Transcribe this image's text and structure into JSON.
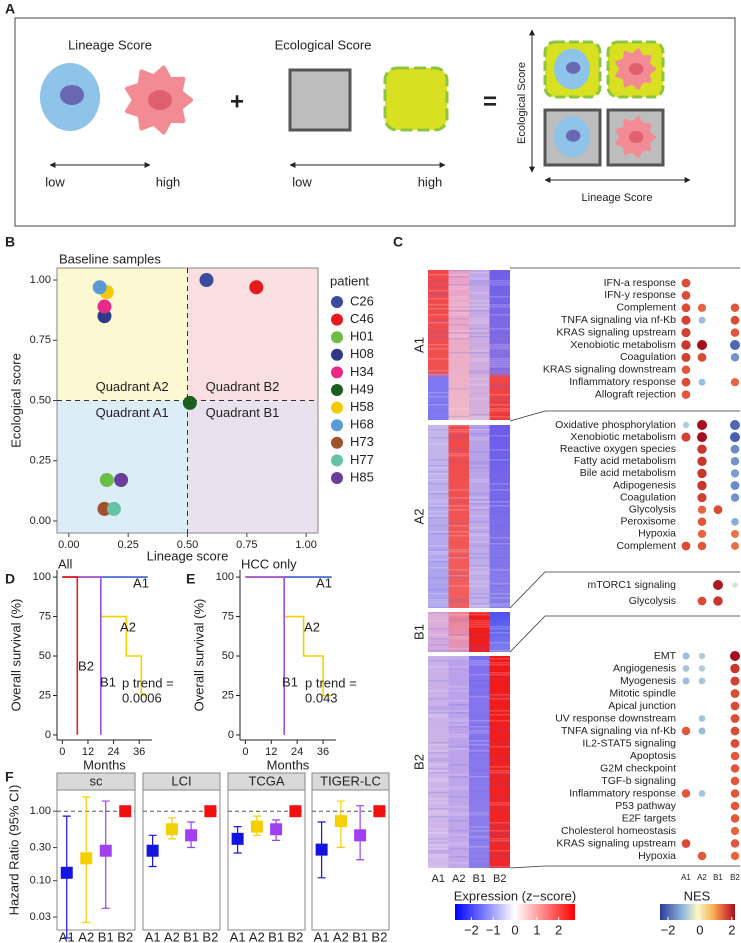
{
  "panel_labels": [
    "A",
    "B",
    "C",
    "D",
    "E",
    "F"
  ],
  "panel_a": {
    "lineage": {
      "title": "Lineage Score",
      "low": "low",
      "high": "high"
    },
    "ecological": {
      "title": "Ecological Score",
      "low": "low",
      "high": "high"
    },
    "operators": [
      "+",
      "="
    ],
    "combined": {
      "y_label": "Ecological Score",
      "x_label": "Lineage Score"
    }
  },
  "chart_data": [
    {
      "type": "scatter",
      "title": "Baseline samples",
      "xlabel": "Lineage score",
      "ylabel": "Ecological score",
      "xlim": [
        -0.05,
        1.05
      ],
      "ylim": [
        -0.05,
        1.05
      ],
      "xticks": [
        {
          "value": 0,
          "label": "0.00"
        },
        0.25,
        {
          "value": 0.5,
          "label": "0.50"
        },
        0.75,
        {
          "value": 1,
          "label": "1.00"
        }
      ],
      "yticks": [
        {
          "value": 0,
          "label": "0.00"
        },
        0.25,
        {
          "value": 0.5,
          "label": "0.50"
        },
        0.75,
        {
          "value": 1,
          "label": "1.00"
        }
      ],
      "threshold": 0.5,
      "quadrant_labels": [
        "Quadrant A2",
        "Quadrant B2",
        "Quadrant A1",
        "Quadrant B1"
      ],
      "quadrant_colors": [
        "#fbf8d2",
        "#f9dfe0",
        "#dcedf7",
        "#e9e1ee"
      ],
      "legend_title": "patient",
      "series": [
        {
          "name": "C26",
          "color": "#3b4b9b",
          "x": [
            0.58
          ],
          "values": [
            1.0
          ]
        },
        {
          "name": "C46",
          "color": "#e41a1c",
          "x": [
            0.79
          ],
          "values": [
            0.97
          ]
        },
        {
          "name": "H01",
          "color": "#6cbd45",
          "x": [
            0.16
          ],
          "values": [
            0.17
          ]
        },
        {
          "name": "H08",
          "color": "#2e3a87",
          "x": [
            0.15
          ],
          "values": [
            0.85
          ]
        },
        {
          "name": "H34",
          "color": "#e7298a",
          "x": [
            0.15
          ],
          "values": [
            0.89
          ]
        },
        {
          "name": "H49",
          "color": "#1b5e20",
          "x": [
            0.51
          ],
          "values": [
            0.49
          ]
        },
        {
          "name": "H58",
          "color": "#f5c800",
          "x": [
            0.16
          ],
          "values": [
            0.95
          ]
        },
        {
          "name": "H68",
          "color": "#5b9bd5",
          "x": [
            0.13
          ],
          "values": [
            0.97
          ]
        },
        {
          "name": "H73",
          "color": "#a0522d",
          "x": [
            0.15
          ],
          "values": [
            0.05
          ]
        },
        {
          "name": "H77",
          "color": "#66c2a5",
          "x": [
            0.19
          ],
          "values": [
            0.05
          ]
        },
        {
          "name": "H85",
          "color": "#6a3d9a",
          "x": [
            0.22
          ],
          "values": [
            0.17
          ]
        }
      ]
    },
    {
      "type": "line",
      "title": "All",
      "xlabel": "Months",
      "ylabel": "Overall survival (%)",
      "xlim": [
        -2.5,
        42
      ],
      "ylim": [
        -3.2,
        104.5
      ],
      "xticks": [
        0,
        12,
        24,
        36
      ],
      "yticks": [
        0,
        25,
        50,
        75,
        100
      ],
      "p_label": "p trend =",
      "p_value": 0.0006,
      "series": [
        {
          "name": "A1",
          "color": "#3a5fcd",
          "x": [
            0,
            40
          ],
          "values": [
            100,
            100
          ]
        },
        {
          "name": "A2",
          "color": "#f5d000",
          "x": [
            0,
            18,
            18,
            30,
            30,
            37,
            37,
            40
          ],
          "values": [
            100,
            100,
            75,
            75,
            50,
            50,
            25,
            25
          ]
        },
        {
          "name": "B1",
          "color": "#a050e0",
          "x": [
            0,
            18,
            18
          ],
          "values": [
            100,
            100,
            0
          ]
        },
        {
          "name": "B2",
          "color": "#e02020",
          "x": [
            0,
            7,
            7,
            7
          ],
          "values": [
            100,
            100,
            50,
            0
          ]
        }
      ]
    },
    {
      "type": "line",
      "title": "HCC only",
      "xlabel": "Months",
      "ylabel": "Overall survival (%)",
      "xlim": [
        -2.5,
        42
      ],
      "ylim": [
        -3.2,
        104.5
      ],
      "xticks": [
        0,
        12,
        24,
        36
      ],
      "yticks": [
        0,
        25,
        50,
        75,
        100
      ],
      "p_label": "p trend =",
      "p_value": 0.043,
      "series": [
        {
          "name": "A1",
          "color": "#3a5fcd",
          "x": [
            0,
            40
          ],
          "values": [
            100,
            100
          ]
        },
        {
          "name": "A2",
          "color": "#f5d000",
          "x": [
            0,
            18,
            18,
            27,
            27,
            36,
            36,
            40
          ],
          "values": [
            100,
            100,
            75,
            75,
            50,
            50,
            25,
            25
          ]
        },
        {
          "name": "B1",
          "color": "#a050e0",
          "x": [
            0,
            18,
            18
          ],
          "values": [
            100,
            100,
            0
          ]
        }
      ]
    },
    {
      "type": "errorbar",
      "title": "sc",
      "ylabel": "Hazard Ratio (95% CI)",
      "log_scale": true,
      "ylim": [
        0.0195,
        2.02
      ],
      "yticks": [
        0.03,
        {
          "value": 0.1,
          "label": "0.10"
        },
        {
          "value": 0.3,
          "label": "0.30"
        },
        {
          "value": 1,
          "label": "1.00"
        }
      ],
      "reference": 1,
      "categories": [
        "A1",
        "A2",
        "B1",
        "B2"
      ],
      "colors": [
        "#1414e0",
        "#f5d000",
        "#a040f0",
        "#f01010"
      ],
      "values": [
        0.13,
        0.21,
        0.27,
        1
      ],
      "lower": [
        0.015,
        0.025,
        0.04,
        null
      ],
      "upper": [
        0.85,
        1.6,
        1.4,
        null
      ]
    },
    {
      "type": "errorbar",
      "title": "LCI",
      "log_scale": true,
      "ylim": [
        0.0195,
        2.02
      ],
      "reference": 1,
      "categories": [
        "A1",
        "A2",
        "B1",
        "B2"
      ],
      "colors": [
        "#1414e0",
        "#f5d000",
        "#a040f0",
        "#f01010"
      ],
      "values": [
        0.27,
        0.55,
        0.45,
        1
      ],
      "lower": [
        0.16,
        0.4,
        0.3,
        null
      ],
      "upper": [
        0.45,
        0.8,
        0.7,
        null
      ]
    },
    {
      "type": "errorbar",
      "title": "TCGA",
      "log_scale": true,
      "ylim": [
        0.0195,
        2.02
      ],
      "reference": 1,
      "categories": [
        "A1",
        "A2",
        "B1",
        "B2"
      ],
      "colors": [
        "#1414e0",
        "#f5d000",
        "#a040f0",
        "#f01010"
      ],
      "values": [
        0.4,
        0.6,
        0.55,
        1
      ],
      "lower": [
        0.25,
        0.45,
        0.38,
        null
      ],
      "upper": [
        0.6,
        0.85,
        0.75,
        null
      ]
    },
    {
      "type": "errorbar",
      "title": "TIGER-LC",
      "log_scale": true,
      "ylim": [
        0.0195,
        2.02
      ],
      "reference": 1,
      "categories": [
        "A1",
        "A2",
        "B1",
        "B2"
      ],
      "colors": [
        "#1414e0",
        "#f5d000",
        "#a040f0",
        "#f01010"
      ],
      "values": [
        0.28,
        0.72,
        0.45,
        1
      ],
      "lower": [
        0.11,
        0.3,
        0.2,
        null
      ],
      "upper": [
        0.7,
        1.4,
        1.2,
        null
      ]
    }
  ],
  "panel_c": {
    "heatmap": {
      "columns": [
        "A1",
        "A2",
        "B1",
        "B2"
      ],
      "groups": [
        "A1",
        "A2",
        "B1",
        "B2"
      ],
      "colorbar_title": "Expression (z−score)",
      "clim": [
        -2.75,
        2.75
      ],
      "colorbar_ticks": [
        {
          "value": -2,
          "label": "−2"
        },
        {
          "value": -1,
          "label": "−1"
        },
        0,
        1,
        2
      ]
    },
    "dotplot": {
      "title": "NES",
      "columns": [
        "A1",
        "A2",
        "B1",
        "B2"
      ],
      "clim": [
        -2.5,
        2.2
      ],
      "colorbar_ticks": [
        {
          "value": -2,
          "label": "−2"
        },
        0,
        2
      ],
      "blocks": [
        {
          "rows": [
            {
              "name": "IFN-a response",
              "values": [
                1.6,
                null,
                null,
                null
              ]
            },
            {
              "name": "IFN-y response",
              "values": [
                1.6,
                null,
                null,
                null
              ]
            },
            {
              "name": "Complement",
              "values": [
                1.6,
                1.4,
                null,
                1.5
              ]
            },
            {
              "name": "TNFA signaling via nf-Kb",
              "values": [
                1.7,
                -1.0,
                null,
                1.6
              ]
            },
            {
              "name": "KRAS signaling upstream",
              "values": [
                1.7,
                null,
                null,
                1.5
              ]
            },
            {
              "name": "Xenobiotic metabolism",
              "values": [
                1.8,
                2.2,
                null,
                -2.0
              ]
            },
            {
              "name": "Coagulation",
              "values": [
                1.7,
                1.6,
                null,
                -1.5
              ]
            },
            {
              "name": "KRAS signaling downstream",
              "values": [
                1.5,
                null,
                null,
                null
              ]
            },
            {
              "name": "Inflammatory response",
              "values": [
                1.6,
                -1.0,
                null,
                1.4
              ]
            },
            {
              "name": "Allograft rejection",
              "values": [
                1.5,
                null,
                null,
                null
              ]
            }
          ]
        },
        {
          "rows": [
            {
              "name": "Oxidative phosphorylation",
              "values": [
                -0.8,
                2.3,
                null,
                -2.0
              ]
            },
            {
              "name": "Xenobiotic metabolism",
              "values": [
                1.7,
                2.2,
                null,
                -2.1
              ]
            },
            {
              "name": "Reactive oxygen species",
              "values": [
                null,
                1.8,
                null,
                -1.6
              ]
            },
            {
              "name": "Fatty acid metabolism",
              "values": [
                null,
                1.8,
                null,
                -1.5
              ]
            },
            {
              "name": "Bile acid metabolism",
              "values": [
                null,
                1.8,
                null,
                -1.4
              ]
            },
            {
              "name": "Adipogenesis",
              "values": [
                null,
                1.8,
                null,
                -1.6
              ]
            },
            {
              "name": "Coagulation",
              "values": [
                null,
                1.7,
                null,
                -1.5
              ]
            },
            {
              "name": "Glycolysis",
              "values": [
                null,
                1.4,
                1.6,
                null
              ]
            },
            {
              "name": "Peroxisome",
              "values": [
                null,
                1.5,
                null,
                -1.2
              ]
            },
            {
              "name": "Hypoxia",
              "values": [
                null,
                1.4,
                null,
                1.3
              ]
            },
            {
              "name": "Complement",
              "values": [
                1.6,
                1.5,
                null,
                1.3
              ]
            }
          ]
        },
        {
          "rows": [
            {
              "name": "mTORC1 signaling",
              "values": [
                null,
                null,
                2.1,
                -0.5
              ]
            },
            {
              "name": "Glycolysis",
              "values": [
                null,
                1.6,
                1.8,
                null
              ]
            }
          ]
        },
        {
          "rows": [
            {
              "name": "EMT",
              "values": [
                -1.0,
                -0.8,
                null,
                2.2
              ]
            },
            {
              "name": "Angiogenesis",
              "values": [
                -0.9,
                -0.8,
                null,
                1.8
              ]
            },
            {
              "name": "Myogenesis",
              "values": [
                -1.0,
                -0.9,
                null,
                1.7
              ]
            },
            {
              "name": "Mitotic spindle",
              "values": [
                null,
                null,
                null,
                1.6
              ]
            },
            {
              "name": "Apical junction",
              "values": [
                null,
                null,
                null,
                1.6
              ]
            },
            {
              "name": "UV response downstream",
              "values": [
                null,
                -0.9,
                null,
                1.6
              ]
            },
            {
              "name": "TNFA signaling via nf-Kb",
              "values": [
                1.5,
                -1.0,
                null,
                1.6
              ]
            },
            {
              "name": "IL2-STAT5 signaling",
              "values": [
                null,
                null,
                null,
                1.6
              ]
            },
            {
              "name": "Apoptosis",
              "values": [
                null,
                null,
                null,
                1.5
              ]
            },
            {
              "name": "G2M checkpoint",
              "values": [
                null,
                null,
                null,
                1.5
              ]
            },
            {
              "name": "TGF-b signaling",
              "values": [
                null,
                null,
                null,
                1.5
              ]
            },
            {
              "name": "Inflammatory response",
              "values": [
                1.5,
                -0.9,
                null,
                1.5
              ]
            },
            {
              "name": "P53 pathway",
              "values": [
                null,
                null,
                null,
                1.5
              ]
            },
            {
              "name": "E2F targets",
              "values": [
                null,
                null,
                null,
                1.5
              ]
            },
            {
              "name": "Cholesterol homeostasis",
              "values": [
                null,
                null,
                null,
                1.4
              ]
            },
            {
              "name": "KRAS signaling upstream",
              "values": [
                1.6,
                null,
                null,
                1.5
              ]
            },
            {
              "name": "Hypoxia",
              "values": [
                null,
                1.5,
                null,
                1.4
              ]
            }
          ]
        }
      ]
    }
  }
}
